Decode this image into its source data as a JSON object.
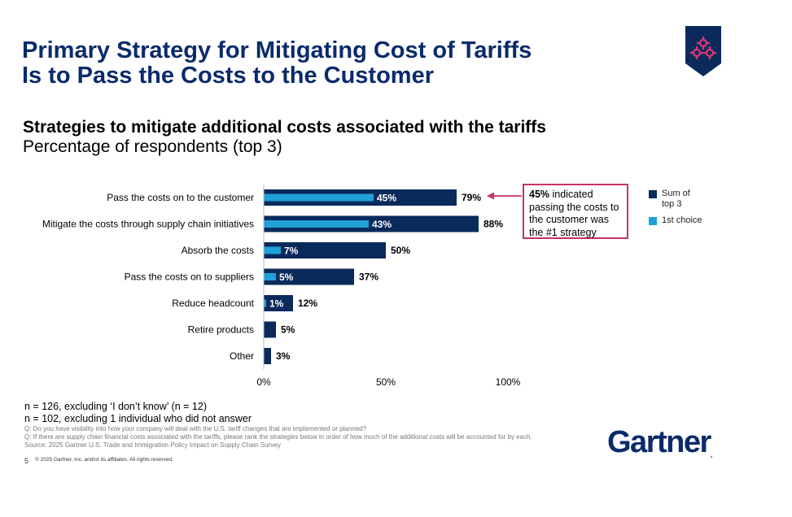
{
  "title_line1": "Primary Strategy for Mitigating Cost of Tariffs",
  "title_line2": "Is to Pass the Costs to the Customer",
  "subtitle_bold": "Strategies to mitigate additional costs associated with the tariffs",
  "subtitle_regular": "Percentage of respondents (top 3)",
  "callout": {
    "highlight": "45%",
    "text": " indicated passing the costs to the customer was the #1 strategy"
  },
  "legend": [
    {
      "label": "Sum of top 3",
      "color": "#0a2a5c"
    },
    {
      "label": "1st choice",
      "color": "#1fa1d8"
    }
  ],
  "notes": [
    "n = 126, excluding ‘I don’t know’ (n = 12)",
    "n = 102, excluding 1 individual who did not answer"
  ],
  "small_notes": [
    "Q: Do you have visibility into how your company will deal with the U.S. tariff changes that are implemented or planned?",
    "Q: If there are supply chain financial costs associated with the tariffs, please rank the strategies below in order of how much of the additional costs will be accounted for by each.",
    "Source: 2025 Gartner U.S. Trade and Immigration Policy Impact on Supply Chain Survey"
  ],
  "page_number": "5",
  "copyright": "© 2025 Gartner, Inc. and/or its affiliates. All rights reserved.",
  "logo_text": "Gartner",
  "badge_icon": "gears-icon",
  "colors": {
    "title": "#0a2a6b",
    "dark_bar": "#0a2a5c",
    "light_bar": "#1fa1d8",
    "callout_border": "#c8306a"
  },
  "chart_data": {
    "type": "bar",
    "orientation": "horizontal",
    "categories": [
      "Pass the costs on to the customer",
      "Mitigate the costs through supply chain initiatives",
      "Absorb the costs",
      "Pass the costs on to suppliers",
      "Reduce headcount",
      "Retire products",
      "Other"
    ],
    "series": [
      {
        "name": "Sum of top 3",
        "values": [
          79,
          88,
          50,
          37,
          12,
          5,
          3
        ],
        "labels": [
          "79%",
          "88%",
          "50%",
          "37%",
          "12%",
          "5%",
          "3%"
        ]
      },
      {
        "name": "1st choice",
        "values": [
          45,
          43,
          7,
          5,
          1,
          null,
          null
        ],
        "labels": [
          "45%",
          "43%",
          "7%",
          "5%",
          "1%",
          "",
          ""
        ]
      }
    ],
    "xlim": [
      0,
      100
    ],
    "xticks": [
      "0%",
      "50%",
      "100%"
    ],
    "grid": false,
    "legend_position": "right"
  }
}
